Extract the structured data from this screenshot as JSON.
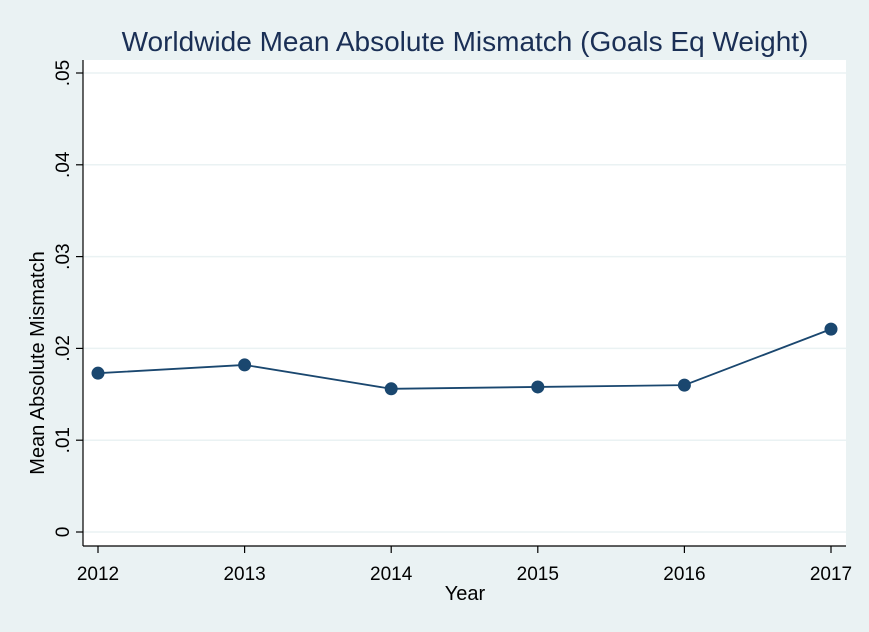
{
  "colors": {
    "background": "#eaf2f3",
    "plot_background": "#ffffff",
    "gridline": "#eaf2f3",
    "series": "#1a476f",
    "title": "#1a2f55",
    "axis": "#000000"
  },
  "chart_data": {
    "type": "line",
    "title": "Worldwide Mean Absolute Mismatch (Goals Eq Weight)",
    "xlabel": "Year",
    "ylabel": "Mean Absolute Mismatch",
    "x": [
      2012,
      2013,
      2014,
      2015,
      2016,
      2017
    ],
    "series": [
      {
        "values": [
          0.0173,
          0.0182,
          0.0156,
          0.0158,
          0.016,
          0.0221
        ]
      }
    ],
    "xlim": [
      2012,
      2017
    ],
    "ylim": [
      0,
      0.05
    ],
    "xticks": [
      "2012",
      "2013",
      "2014",
      "2015",
      "2016",
      "2017"
    ],
    "yticks": [
      {
        "value": 0,
        "label": "0"
      },
      {
        "value": 0.01,
        "label": ".01"
      },
      {
        "value": 0.02,
        "label": ".02"
      },
      {
        "value": 0.03,
        "label": ".03"
      },
      {
        "value": 0.04,
        "label": ".04"
      },
      {
        "value": 0.05,
        "label": ".05"
      }
    ],
    "grid": true,
    "markers": "circle"
  }
}
